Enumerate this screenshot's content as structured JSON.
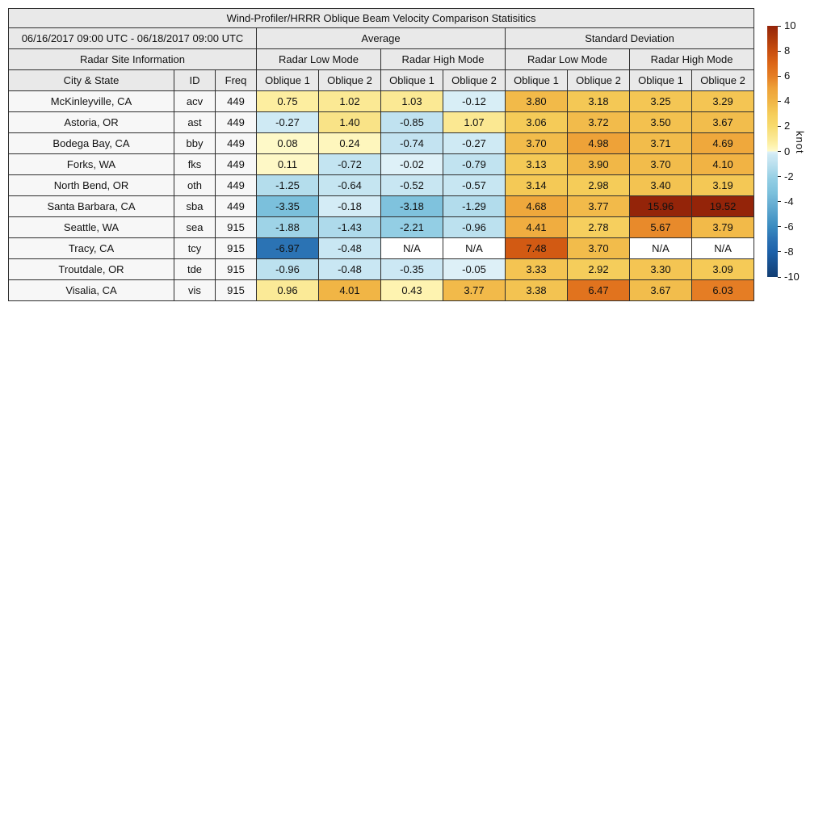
{
  "chart_data": {
    "type": "table",
    "title": "Wind-Profiler/HRRR Oblique Beam Velocity Comparison Statisitics",
    "date_range": "06/16/2017 09:00 UTC - 06/18/2017 09:00 UTC",
    "site_info_header": "Radar Site Information",
    "group_headers": [
      "Average",
      "Standard Deviation"
    ],
    "mode_headers": [
      "Radar Low Mode",
      "Radar High Mode",
      "Radar Low Mode",
      "Radar High Mode"
    ],
    "column_headers": [
      "City & State",
      "ID",
      "Freq",
      "Oblique 1",
      "Oblique 2",
      "Oblique 1",
      "Oblique 2",
      "Oblique 1",
      "Oblique 2",
      "Oblique 1",
      "Oblique 2"
    ],
    "na_text": "N/A",
    "rows": [
      {
        "city": "McKinleyville, CA",
        "id": "acv",
        "freq": "449",
        "values": [
          0.75,
          1.02,
          1.03,
          -0.12,
          3.8,
          3.18,
          3.25,
          3.29
        ]
      },
      {
        "city": "Astoria, OR",
        "id": "ast",
        "freq": "449",
        "values": [
          -0.27,
          1.4,
          -0.85,
          1.07,
          3.06,
          3.72,
          3.5,
          3.67
        ]
      },
      {
        "city": "Bodega Bay, CA",
        "id": "bby",
        "freq": "449",
        "values": [
          0.08,
          0.24,
          -0.74,
          -0.27,
          3.7,
          4.98,
          3.71,
          4.69
        ]
      },
      {
        "city": "Forks, WA",
        "id": "fks",
        "freq": "449",
        "values": [
          0.11,
          -0.72,
          -0.02,
          -0.79,
          3.13,
          3.9,
          3.7,
          4.1
        ]
      },
      {
        "city": "North Bend, OR",
        "id": "oth",
        "freq": "449",
        "values": [
          -1.25,
          -0.64,
          -0.52,
          -0.57,
          3.14,
          2.98,
          3.4,
          3.19
        ]
      },
      {
        "city": "Santa Barbara, CA",
        "id": "sba",
        "freq": "449",
        "values": [
          -3.35,
          -0.18,
          -3.18,
          -1.29,
          4.68,
          3.77,
          15.96,
          19.52
        ]
      },
      {
        "city": "Seattle, WA",
        "id": "sea",
        "freq": "915",
        "values": [
          -1.88,
          -1.43,
          -2.21,
          -0.96,
          4.41,
          2.78,
          5.67,
          3.79
        ]
      },
      {
        "city": "Tracy, CA",
        "id": "tcy",
        "freq": "915",
        "values": [
          -6.97,
          -0.48,
          "N/A",
          "N/A",
          7.48,
          3.7,
          "N/A",
          "N/A"
        ]
      },
      {
        "city": "Troutdale, OR",
        "id": "tde",
        "freq": "915",
        "values": [
          -0.96,
          -0.48,
          -0.35,
          -0.05,
          3.33,
          2.92,
          3.3,
          3.09
        ]
      },
      {
        "city": "Visalia, CA",
        "id": "vis",
        "freq": "915",
        "values": [
          0.96,
          4.01,
          0.43,
          3.77,
          3.38,
          6.47,
          3.67,
          6.03
        ]
      }
    ],
    "colorbar": {
      "label": "knot",
      "min": -10,
      "max": 10,
      "ticks": [
        10,
        8,
        6,
        4,
        2,
        0,
        -2,
        -4,
        -6,
        -8,
        -10
      ],
      "na_color": "#ffffff",
      "stops": [
        {
          "v": -10,
          "c": "#123E73"
        },
        {
          "v": -8,
          "c": "#1D61A9"
        },
        {
          "v": -7,
          "c": "#2B72B4"
        },
        {
          "v": -6,
          "c": "#3A8BC0"
        },
        {
          "v": -5,
          "c": "#539FCB"
        },
        {
          "v": -4,
          "c": "#6CB2D5"
        },
        {
          "v": -3.35,
          "c": "#7BC0DC"
        },
        {
          "v": -2.2,
          "c": "#93CEE4"
        },
        {
          "v": -1.3,
          "c": "#B2DCEC"
        },
        {
          "v": -0.7,
          "c": "#C4E4F1"
        },
        {
          "v": -0.3,
          "c": "#CDE9F4"
        },
        {
          "v": -0.01,
          "c": "#DFF1F8"
        },
        {
          "v": 0,
          "c": "#F4F8E8"
        },
        {
          "v": 0.01,
          "c": "#FEFACD"
        },
        {
          "v": 0.5,
          "c": "#FEF2AB"
        },
        {
          "v": 1,
          "c": "#FBE995"
        },
        {
          "v": 1.5,
          "c": "#F9E283"
        },
        {
          "v": 2,
          "c": "#F8DB6E"
        },
        {
          "v": 3,
          "c": "#F5CC59"
        },
        {
          "v": 4,
          "c": "#F1B545"
        },
        {
          "v": 5,
          "c": "#EEA238"
        },
        {
          "v": 6,
          "c": "#E57E24"
        },
        {
          "v": 7,
          "c": "#DC6617"
        },
        {
          "v": 8,
          "c": "#C84E0F"
        },
        {
          "v": 9,
          "c": "#AE3A0B"
        },
        {
          "v": 10,
          "c": "#942409"
        }
      ]
    }
  }
}
